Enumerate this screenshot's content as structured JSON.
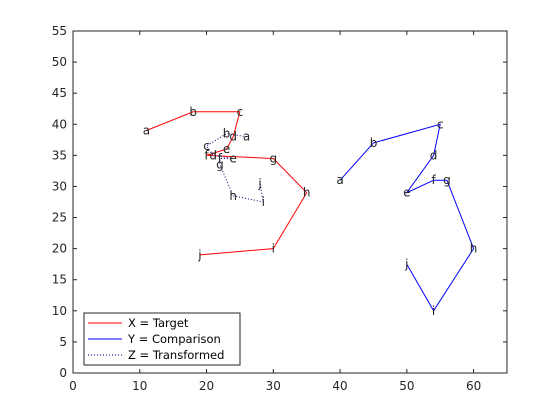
{
  "chart_data": {
    "type": "line",
    "title": "",
    "xlabel": "",
    "ylabel": "",
    "xlim": [
      0,
      65
    ],
    "ylim": [
      0,
      55
    ],
    "xticks": [
      0,
      10,
      20,
      30,
      40,
      50,
      60
    ],
    "yticks": [
      0,
      5,
      10,
      15,
      20,
      25,
      30,
      35,
      40,
      45,
      50,
      55
    ],
    "grid": false,
    "legend_position": "bottom-left",
    "series": [
      {
        "name": "X = Target",
        "color": "#ff0000",
        "line_style": "solid",
        "points": [
          {
            "label": "a",
            "x": 11,
            "y": 39
          },
          {
            "label": "b",
            "x": 18,
            "y": 42
          },
          {
            "label": "c",
            "x": 25,
            "y": 42
          },
          {
            "label": "d",
            "x": 24,
            "y": 38
          },
          {
            "label": "e",
            "x": 23,
            "y": 36
          },
          {
            "label": "f",
            "x": 20,
            "y": 35
          },
          {
            "label": "g",
            "x": 30,
            "y": 34.5
          },
          {
            "label": "h",
            "x": 35,
            "y": 29
          },
          {
            "label": "i",
            "x": 30,
            "y": 20
          },
          {
            "label": "j",
            "x": 19,
            "y": 19
          }
        ]
      },
      {
        "name": "Y = Comparison",
        "color": "#0000ff",
        "line_style": "solid",
        "points": [
          {
            "label": "a",
            "x": 40,
            "y": 31
          },
          {
            "label": "b",
            "x": 45,
            "y": 37
          },
          {
            "label": "c",
            "x": 55,
            "y": 40
          },
          {
            "label": "d",
            "x": 54,
            "y": 35
          },
          {
            "label": "e",
            "x": 50,
            "y": 29
          },
          {
            "label": "f",
            "x": 54,
            "y": 31
          },
          {
            "label": "g",
            "x": 56,
            "y": 31
          },
          {
            "label": "h",
            "x": 60,
            "y": 20
          },
          {
            "label": "i",
            "x": 54,
            "y": 10
          },
          {
            "label": "j",
            "x": 50,
            "y": 17.5
          }
        ]
      },
      {
        "name": "Z = Transformed",
        "color": "#000080",
        "line_style": "dotted",
        "points": [
          {
            "label": "a",
            "x": 26,
            "y": 38
          },
          {
            "label": "b",
            "x": 23,
            "y": 38.5
          },
          {
            "label": "c",
            "x": 20,
            "y": 36.5
          },
          {
            "label": "d",
            "x": 21,
            "y": 35
          },
          {
            "label": "e",
            "x": 24,
            "y": 34.5
          },
          {
            "label": "f",
            "x": 22,
            "y": 34.5
          },
          {
            "label": "g",
            "x": 22,
            "y": 33.5
          },
          {
            "label": "h",
            "x": 24,
            "y": 28.5
          },
          {
            "label": "i",
            "x": 28.5,
            "y": 27.5
          },
          {
            "label": "j",
            "x": 28,
            "y": 30.5
          }
        ]
      }
    ]
  }
}
